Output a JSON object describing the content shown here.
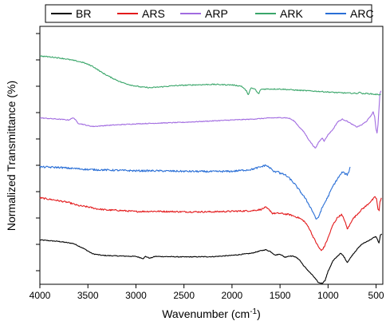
{
  "chart_data": {
    "type": "line",
    "xlabel": "Wavenumber (cm",
    "xlabel_sup": "-1",
    "xlabel_end": ")",
    "ylabel": "Normalized Transmittance (%)",
    "x_ticks": [
      4000,
      3500,
      3000,
      2500,
      2000,
      1500,
      1000,
      500
    ],
    "xlim": [
      4000,
      430
    ],
    "x_reversed": true,
    "ylim": [
      0,
      1
    ],
    "y_tick_labels": "none",
    "legend_position": "top",
    "series": [
      {
        "name": "BR",
        "color": "#000000",
        "noise": 0.0015,
        "points": [
          [
            4000,
            0.172
          ],
          [
            3800,
            0.166
          ],
          [
            3650,
            0.158
          ],
          [
            3550,
            0.14
          ],
          [
            3450,
            0.118
          ],
          [
            3350,
            0.112
          ],
          [
            3200,
            0.11
          ],
          [
            3000,
            0.108
          ],
          [
            2925,
            0.1
          ],
          [
            2900,
            0.108
          ],
          [
            2855,
            0.101
          ],
          [
            2800,
            0.108
          ],
          [
            2500,
            0.106
          ],
          [
            2200,
            0.107
          ],
          [
            2000,
            0.112
          ],
          [
            1800,
            0.12
          ],
          [
            1700,
            0.13
          ],
          [
            1650,
            0.134
          ],
          [
            1600,
            0.127
          ],
          [
            1550,
            0.113
          ],
          [
            1500,
            0.117
          ],
          [
            1450,
            0.105
          ],
          [
            1400,
            0.11
          ],
          [
            1350,
            0.108
          ],
          [
            1300,
            0.096
          ],
          [
            1250,
            0.07
          ],
          [
            1200,
            0.05
          ],
          [
            1150,
            0.03
          ],
          [
            1100,
            0.006
          ],
          [
            1060,
            0.004
          ],
          [
            1030,
            0.016
          ],
          [
            1000,
            0.05
          ],
          [
            950,
            0.09
          ],
          [
            900,
            0.11
          ],
          [
            870,
            0.12
          ],
          [
            840,
            0.11
          ],
          [
            800,
            0.085
          ],
          [
            780,
            0.095
          ],
          [
            750,
            0.112
          ],
          [
            700,
            0.135
          ],
          [
            650,
            0.155
          ],
          [
            600,
            0.165
          ],
          [
            550,
            0.175
          ],
          [
            520,
            0.182
          ],
          [
            500,
            0.185
          ],
          [
            485,
            0.172
          ],
          [
            470,
            0.16
          ],
          [
            455,
            0.19
          ],
          [
            440,
            0.195
          ]
        ]
      },
      {
        "name": "ARS",
        "color": "#e31a1c",
        "noise": 0.003,
        "points": [
          [
            4000,
            0.335
          ],
          [
            3850,
            0.327
          ],
          [
            3700,
            0.317
          ],
          [
            3600,
            0.305
          ],
          [
            3500,
            0.3
          ],
          [
            3400,
            0.292
          ],
          [
            3300,
            0.288
          ],
          [
            3200,
            0.287
          ],
          [
            3000,
            0.282
          ],
          [
            2800,
            0.283
          ],
          [
            2500,
            0.281
          ],
          [
            2200,
            0.281
          ],
          [
            2000,
            0.283
          ],
          [
            1800,
            0.285
          ],
          [
            1700,
            0.29
          ],
          [
            1650,
            0.298
          ],
          [
            1600,
            0.285
          ],
          [
            1580,
            0.275
          ],
          [
            1500,
            0.275
          ],
          [
            1400,
            0.27
          ],
          [
            1300,
            0.257
          ],
          [
            1250,
            0.245
          ],
          [
            1200,
            0.22
          ],
          [
            1150,
            0.18
          ],
          [
            1100,
            0.145
          ],
          [
            1070,
            0.13
          ],
          [
            1040,
            0.145
          ],
          [
            1000,
            0.18
          ],
          [
            950,
            0.23
          ],
          [
            900,
            0.26
          ],
          [
            860,
            0.27
          ],
          [
            830,
            0.25
          ],
          [
            800,
            0.215
          ],
          [
            780,
            0.225
          ],
          [
            750,
            0.25
          ],
          [
            700,
            0.27
          ],
          [
            650,
            0.29
          ],
          [
            600,
            0.305
          ],
          [
            560,
            0.32
          ],
          [
            530,
            0.33
          ],
          [
            510,
            0.34
          ],
          [
            495,
            0.33
          ],
          [
            480,
            0.29
          ],
          [
            468,
            0.285
          ],
          [
            460,
            0.32
          ],
          [
            445,
            0.335
          ]
        ]
      },
      {
        "name": "ARP",
        "color": "#a16be0",
        "noise": 0.0015,
        "points": [
          [
            4000,
            0.645
          ],
          [
            3800,
            0.64
          ],
          [
            3700,
            0.637
          ],
          [
            3650,
            0.646
          ],
          [
            3600,
            0.624
          ],
          [
            3550,
            0.62
          ],
          [
            3500,
            0.615
          ],
          [
            3450,
            0.612
          ],
          [
            3400,
            0.613
          ],
          [
            3300,
            0.616
          ],
          [
            3000,
            0.622
          ],
          [
            2500,
            0.628
          ],
          [
            2000,
            0.637
          ],
          [
            1800,
            0.64
          ],
          [
            1600,
            0.645
          ],
          [
            1450,
            0.646
          ],
          [
            1400,
            0.643
          ],
          [
            1350,
            0.632
          ],
          [
            1300,
            0.61
          ],
          [
            1250,
            0.59
          ],
          [
            1200,
            0.56
          ],
          [
            1150,
            0.535
          ],
          [
            1130,
            0.527
          ],
          [
            1100,
            0.55
          ],
          [
            1060,
            0.568
          ],
          [
            1040,
            0.555
          ],
          [
            1000,
            0.58
          ],
          [
            950,
            0.6
          ],
          [
            900,
            0.63
          ],
          [
            850,
            0.64
          ],
          [
            800,
            0.632
          ],
          [
            750,
            0.62
          ],
          [
            700,
            0.61
          ],
          [
            650,
            0.618
          ],
          [
            600,
            0.632
          ],
          [
            560,
            0.65
          ],
          [
            530,
            0.668
          ],
          [
            515,
            0.65
          ],
          [
            500,
            0.6
          ],
          [
            490,
            0.585
          ],
          [
            480,
            0.62
          ],
          [
            470,
            0.68
          ],
          [
            460,
            0.74
          ],
          [
            450,
            0.75
          ]
        ]
      },
      {
        "name": "ARK",
        "color": "#3aa66a",
        "noise": 0.002,
        "points": [
          [
            4000,
            0.885
          ],
          [
            3850,
            0.88
          ],
          [
            3750,
            0.875
          ],
          [
            3650,
            0.868
          ],
          [
            3550,
            0.86
          ],
          [
            3450,
            0.845
          ],
          [
            3350,
            0.82
          ],
          [
            3250,
            0.8
          ],
          [
            3150,
            0.783
          ],
          [
            3050,
            0.772
          ],
          [
            2950,
            0.765
          ],
          [
            2850,
            0.762
          ],
          [
            2750,
            0.765
          ],
          [
            2600,
            0.77
          ],
          [
            2400,
            0.773
          ],
          [
            2200,
            0.775
          ],
          [
            2000,
            0.773
          ],
          [
            1900,
            0.768
          ],
          [
            1850,
            0.75
          ],
          [
            1835,
            0.735
          ],
          [
            1825,
            0.74
          ],
          [
            1810,
            0.755
          ],
          [
            1800,
            0.76
          ],
          [
            1760,
            0.757
          ],
          [
            1735,
            0.742
          ],
          [
            1720,
            0.74
          ],
          [
            1700,
            0.756
          ],
          [
            1650,
            0.757
          ],
          [
            1500,
            0.757
          ],
          [
            1300,
            0.752
          ],
          [
            1100,
            0.748
          ],
          [
            900,
            0.743
          ],
          [
            700,
            0.74
          ],
          [
            660,
            0.745
          ],
          [
            640,
            0.738
          ],
          [
            600,
            0.74
          ],
          [
            500,
            0.736
          ],
          [
            450,
            0.736
          ]
        ]
      },
      {
        "name": "ARC",
        "color": "#2a6fd6",
        "noise": 0.0035,
        "points": [
          [
            4000,
            0.455
          ],
          [
            3800,
            0.453
          ],
          [
            3700,
            0.45
          ],
          [
            3600,
            0.448
          ],
          [
            3500,
            0.445
          ],
          [
            3400,
            0.444
          ],
          [
            3200,
            0.442
          ],
          [
            3000,
            0.44
          ],
          [
            2800,
            0.44
          ],
          [
            2500,
            0.438
          ],
          [
            2200,
            0.437
          ],
          [
            2000,
            0.438
          ],
          [
            1800,
            0.445
          ],
          [
            1700,
            0.455
          ],
          [
            1650,
            0.462
          ],
          [
            1600,
            0.45
          ],
          [
            1560,
            0.435
          ],
          [
            1520,
            0.44
          ],
          [
            1500,
            0.43
          ],
          [
            1450,
            0.425
          ],
          [
            1400,
            0.41
          ],
          [
            1350,
            0.39
          ],
          [
            1300,
            0.365
          ],
          [
            1250,
            0.34
          ],
          [
            1200,
            0.31
          ],
          [
            1150,
            0.275
          ],
          [
            1120,
            0.25
          ],
          [
            1100,
            0.26
          ],
          [
            1080,
            0.28
          ],
          [
            1050,
            0.305
          ],
          [
            1000,
            0.34
          ],
          [
            950,
            0.38
          ],
          [
            900,
            0.41
          ],
          [
            870,
            0.425
          ],
          [
            850,
            0.436
          ],
          [
            830,
            0.43
          ],
          [
            800,
            0.425
          ],
          [
            780,
            0.44
          ],
          [
            770,
            0.455
          ]
        ]
      }
    ]
  }
}
